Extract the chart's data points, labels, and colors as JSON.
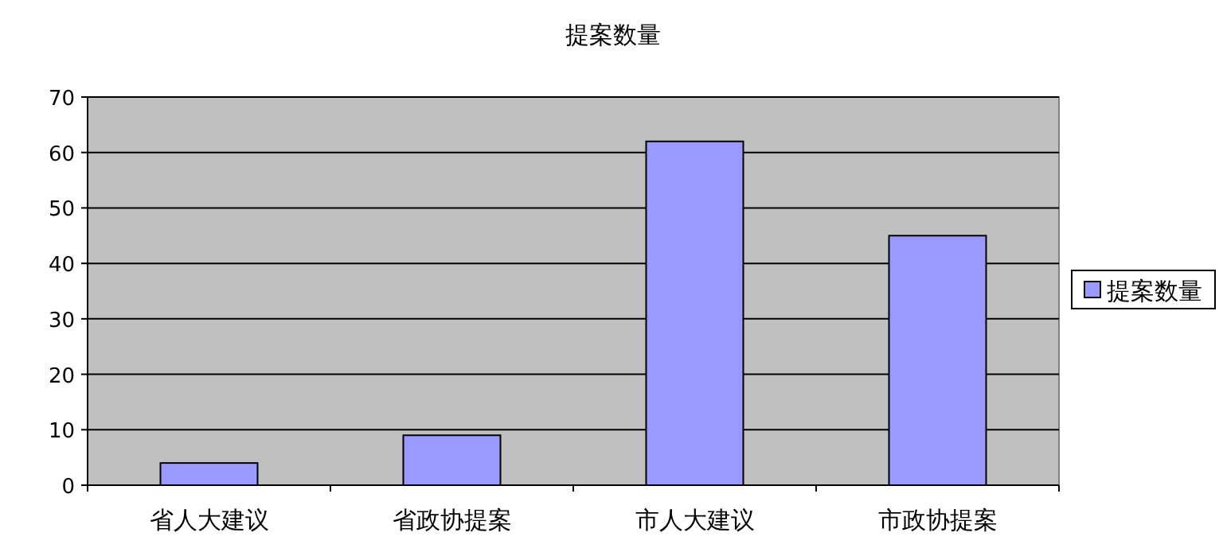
{
  "chart_data": {
    "type": "bar",
    "title": "提案数量",
    "categories": [
      "省人大建议",
      "省政协提案",
      "市人大建议",
      "市政协提案"
    ],
    "series": [
      {
        "name": "提案数量",
        "color": "#9999ff",
        "values": [
          4,
          9,
          62,
          45
        ]
      }
    ],
    "ylim": [
      0,
      70
    ],
    "yticks": [
      0,
      10,
      20,
      30,
      40,
      50,
      60,
      70
    ],
    "grid": "y",
    "legend": "right"
  }
}
